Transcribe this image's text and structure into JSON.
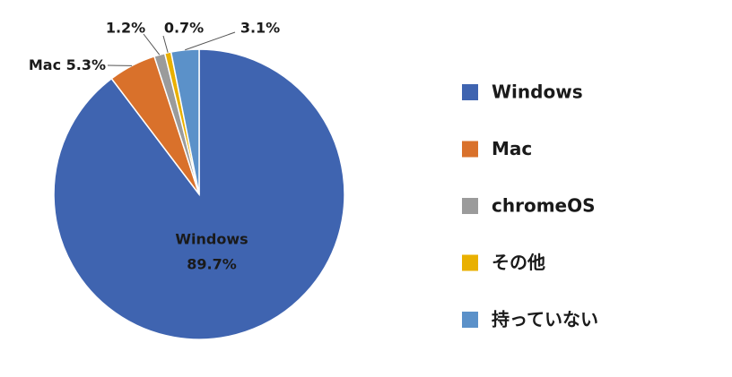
{
  "chart_data": {
    "type": "pie",
    "categories": [
      "Windows",
      "Mac",
      "chromeOS",
      "その他",
      "持っていない"
    ],
    "values": [
      89.7,
      5.3,
      1.2,
      0.7,
      3.1
    ],
    "value_labels": [
      "89.7%",
      "5.3%",
      "1.2%",
      "0.7%",
      "3.1%"
    ],
    "colors": [
      "#3f64b0",
      "#d9712b",
      "#9b9b9b",
      "#e9b000",
      "#5b91c9"
    ],
    "legend": "right"
  }
}
